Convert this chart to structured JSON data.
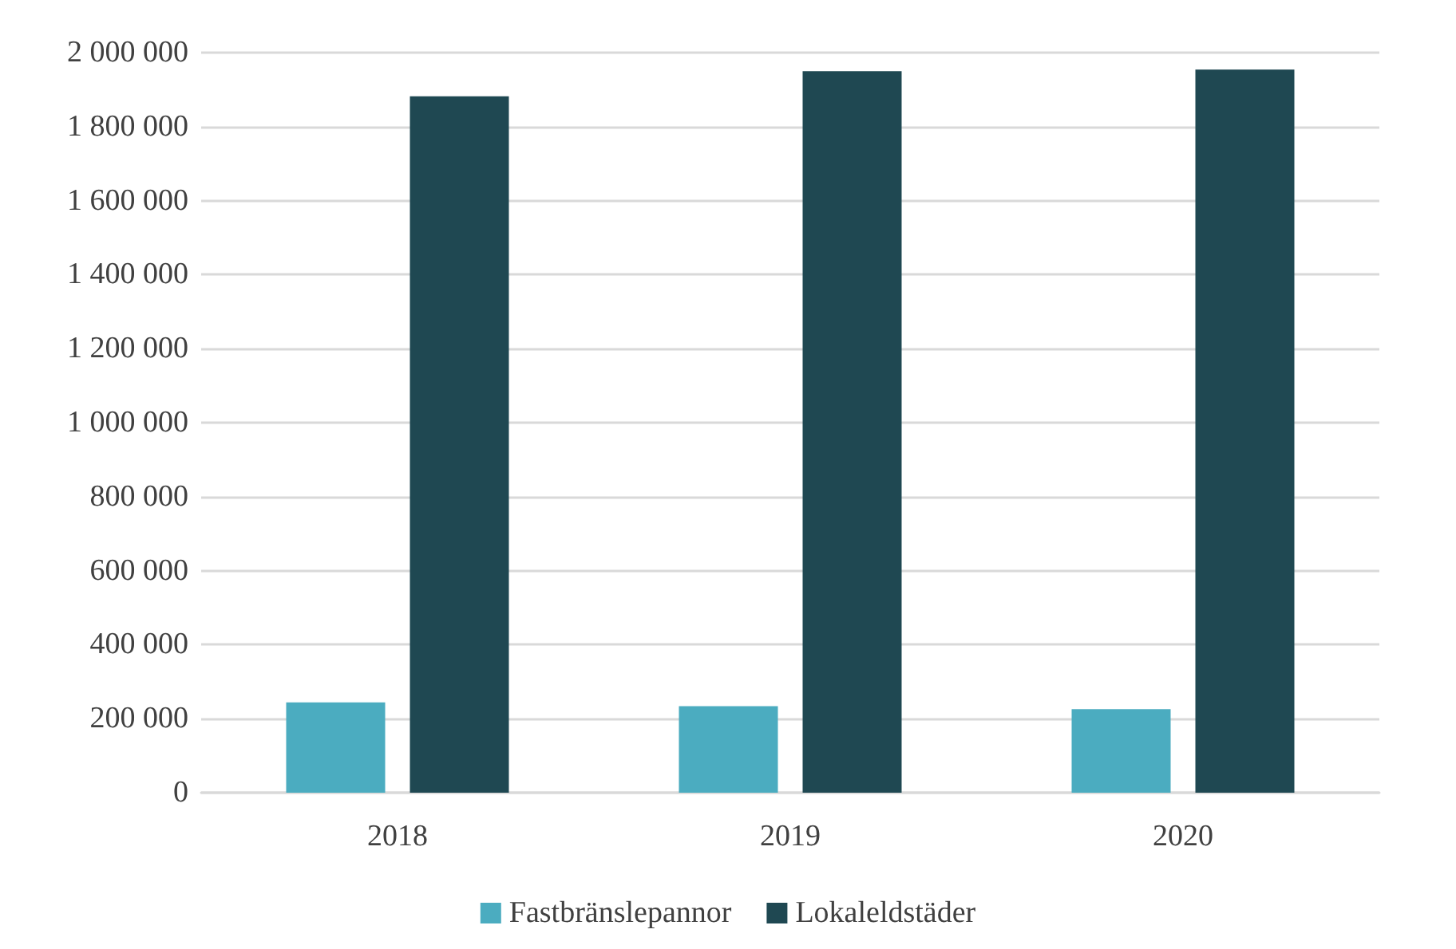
{
  "chart_data": {
    "type": "bar",
    "categories": [
      "2018",
      "2019",
      "2020"
    ],
    "series": [
      {
        "name": "Fastbränslepannor",
        "color": "#4bacc0",
        "values": [
          244000,
          234000,
          226000
        ]
      },
      {
        "name": "Lokaleldstäder",
        "color": "#1f4852",
        "values": [
          1882000,
          1950000,
          1954000
        ]
      }
    ],
    "ylim": [
      0,
      2000000
    ],
    "yticks": [
      0,
      {
        "value": 200000,
        "label": "200 000"
      },
      {
        "value": 400000,
        "label": "400 000"
      },
      {
        "value": 600000,
        "label": "600 000"
      },
      {
        "value": 800000,
        "label": "800 000"
      },
      {
        "value": 1000000,
        "label": "1 000 000"
      },
      {
        "value": 1200000,
        "label": "1 200 000"
      },
      {
        "value": 1400000,
        "label": "1 400 000"
      },
      {
        "value": 1600000,
        "label": "1 600 000"
      },
      {
        "value": 1800000,
        "label": "1 800 000"
      },
      {
        "value": 2000000,
        "label": "2 000 000"
      }
    ],
    "grid": "y",
    "legend": "bottom"
  }
}
